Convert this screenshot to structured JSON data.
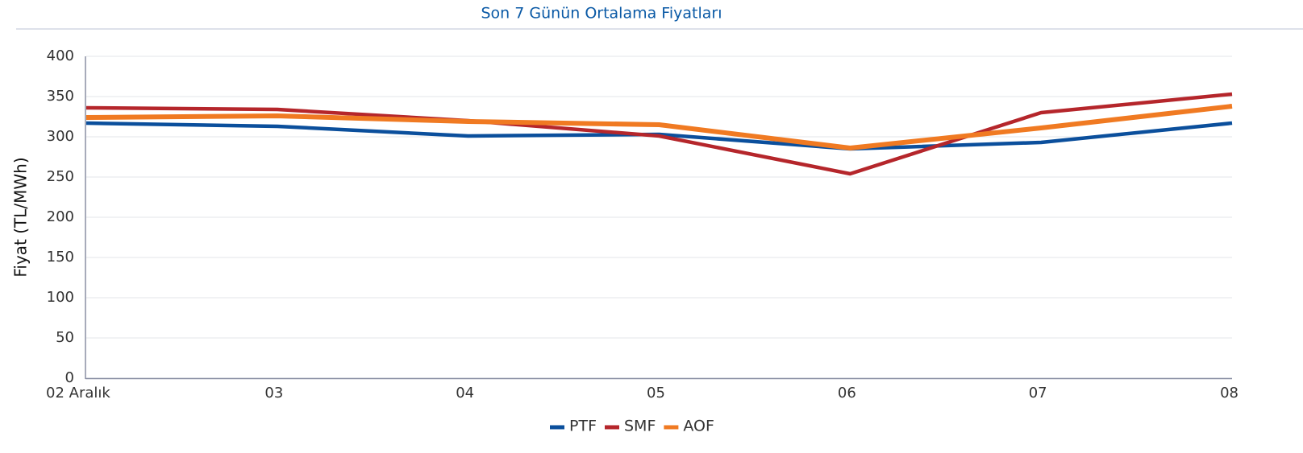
{
  "chart_data": {
    "type": "line",
    "title": "Son 7 Günün Ortalama Fiyatları",
    "y_label": "Fiyat (TL/MWh)",
    "categories": [
      "02 Aralık",
      "03",
      "04",
      "05",
      "06",
      "07",
      "08"
    ],
    "series": [
      {
        "name": "PTF",
        "color": "#0b4f9c",
        "values": [
          317,
          313,
          301,
          303,
          285,
          293,
          317
        ]
      },
      {
        "name": "SMF",
        "color": "#b5262b",
        "values": [
          336,
          334,
          320,
          301,
          254,
          330,
          353
        ]
      },
      {
        "name": "AOF",
        "color": "#f07a22",
        "values": [
          324,
          326,
          319,
          315,
          286,
          311,
          338
        ]
      }
    ],
    "ylim": [
      0,
      400
    ],
    "yticks": [
      0,
      50,
      100,
      150,
      200,
      250,
      300,
      350,
      400
    ],
    "grid": true,
    "legend": "bottom"
  }
}
